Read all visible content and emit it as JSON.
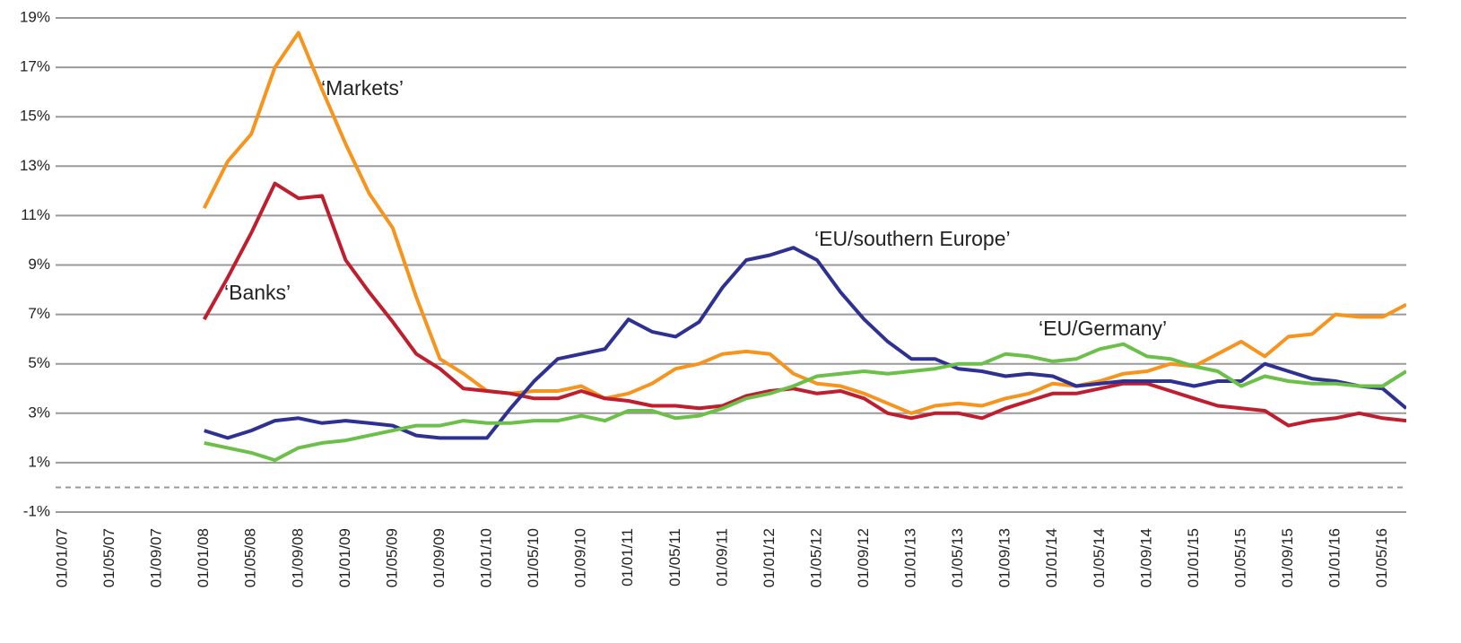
{
  "chart_data": {
    "type": "line",
    "categories": [
      "01/01/07",
      null,
      "01/05/07",
      null,
      "01/09/07",
      null,
      "01/01/08",
      null,
      "01/05/08",
      null,
      "01/09/08",
      null,
      "01/01/09",
      null,
      "01/05/09",
      null,
      "01/09/09",
      null,
      "01/01/10",
      null,
      "01/05/10",
      null,
      "01/09/10",
      null,
      "01/01/11",
      null,
      "01/05/11",
      null,
      "01/09/11",
      null,
      "01/01/12",
      null,
      "01/05/12",
      null,
      "01/09/12",
      null,
      "01/01/13",
      null,
      "01/05/13",
      null,
      "01/09/13",
      null,
      "01/01/14",
      null,
      "01/05/14",
      null,
      "01/09/14",
      null,
      "01/01/15",
      null,
      "01/05/15",
      null,
      "01/09/15",
      null,
      "01/01/16",
      null,
      "01/05/16",
      null
    ],
    "series": [
      {
        "name": "‘Markets’",
        "color": "#f7941d",
        "values": [
          null,
          null,
          null,
          null,
          null,
          null,
          11.3,
          13.2,
          14.3,
          17,
          18.4,
          16.1,
          13.9,
          11.9,
          10.5,
          7.7,
          5.2,
          4.6,
          3.9,
          3.8,
          3.9,
          3.9,
          4.1,
          3.6,
          3.8,
          4.2,
          4.8,
          5.0,
          5.4,
          5.5,
          5.4,
          4.6,
          4.2,
          4.1,
          3.8,
          3.4,
          3.0,
          3.3,
          3.4,
          3.3,
          3.6,
          3.8,
          4.2,
          4.1,
          4.3,
          4.6,
          4.7,
          5.0,
          4.9,
          5.4,
          5.9,
          5.3,
          6.1,
          6.2,
          7.0,
          6.9,
          6.9,
          7.4
        ]
      },
      {
        "name": "‘Banks’",
        "color": "#be1e2d",
        "values": [
          null,
          null,
          null,
          null,
          null,
          null,
          6.8,
          8.5,
          10.3,
          12.3,
          11.7,
          11.8,
          9.2,
          7.9,
          6.7,
          5.4,
          4.8,
          4.0,
          3.9,
          3.8,
          3.6,
          3.6,
          3.9,
          3.6,
          3.5,
          3.3,
          3.3,
          3.2,
          3.3,
          3.7,
          3.9,
          4.0,
          3.8,
          3.9,
          3.6,
          3.0,
          2.8,
          3.0,
          3.0,
          2.8,
          3.2,
          3.5,
          3.8,
          3.8,
          4.0,
          4.2,
          4.2,
          3.9,
          3.6,
          3.3,
          3.2,
          3.1,
          2.5,
          2.7,
          2.8,
          3.0,
          2.8,
          2.7
        ]
      },
      {
        "name": "‘EU/southern Europe’",
        "color": "#2e3192",
        "values": [
          null,
          null,
          null,
          null,
          null,
          null,
          2.3,
          2.0,
          2.3,
          2.7,
          2.8,
          2.6,
          2.7,
          2.6,
          2.5,
          2.1,
          2.0,
          2.0,
          2.0,
          3.2,
          4.3,
          5.2,
          5.4,
          5.6,
          6.8,
          6.3,
          6.1,
          6.7,
          8.1,
          9.2,
          9.4,
          9.7,
          9.2,
          7.9,
          6.8,
          5.9,
          5.2,
          5.2,
          4.8,
          4.7,
          4.5,
          4.6,
          4.5,
          4.1,
          4.2,
          4.3,
          4.3,
          4.3,
          4.1,
          4.3,
          4.3,
          5.0,
          4.7,
          4.4,
          4.3,
          4.1,
          4.0,
          3.2
        ]
      },
      {
        "name": "‘EU/Germany’",
        "color": "#6cc04a",
        "values": [
          null,
          null,
          null,
          null,
          null,
          null,
          1.8,
          1.6,
          1.4,
          1.1,
          1.6,
          1.8,
          1.9,
          2.1,
          2.3,
          2.5,
          2.5,
          2.7,
          2.6,
          2.6,
          2.7,
          2.7,
          2.9,
          2.7,
          3.1,
          3.1,
          2.8,
          2.9,
          3.2,
          3.6,
          3.8,
          4.1,
          4.5,
          4.6,
          4.7,
          4.6,
          4.7,
          4.8,
          5.0,
          5.0,
          5.4,
          5.3,
          5.1,
          5.2,
          5.6,
          5.8,
          5.3,
          5.2,
          4.9,
          4.7,
          4.1,
          4.5,
          4.3,
          4.2,
          4.2,
          4.1,
          4.1,
          4.7
        ]
      }
    ],
    "ylim": [
      -1,
      19
    ],
    "yticks": [
      {
        "value": -1,
        "label": "-1%"
      },
      {
        "value": 1,
        "label": "1%"
      },
      {
        "value": 3,
        "label": "3%"
      },
      {
        "value": 5,
        "label": "5%"
      },
      {
        "value": 7,
        "label": "7%"
      },
      {
        "value": 9,
        "label": "9%"
      },
      {
        "value": 11,
        "label": "11%"
      },
      {
        "value": 13,
        "label": "13%"
      },
      {
        "value": 15,
        "label": "15%"
      },
      {
        "value": 17,
        "label": "17%"
      },
      {
        "value": 19,
        "label": "19%"
      }
    ],
    "grid": true
  }
}
